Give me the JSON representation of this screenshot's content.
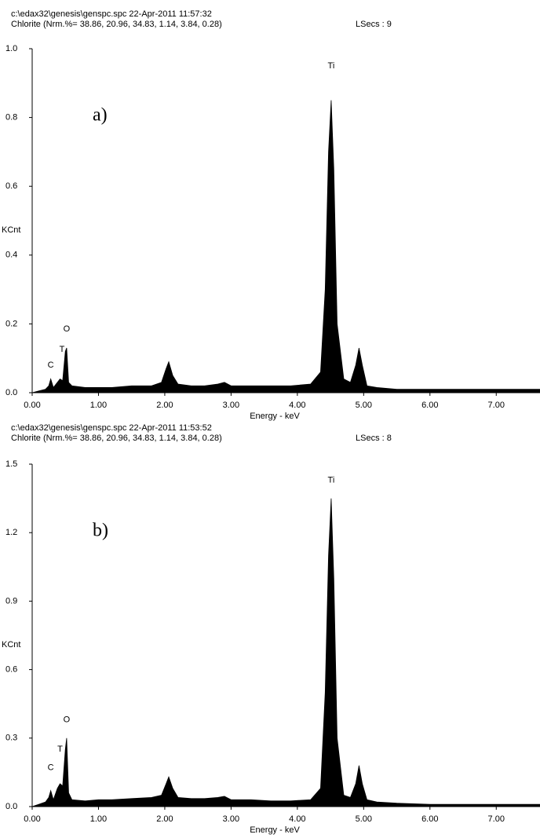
{
  "chart_data": [
    {
      "type": "area",
      "file": "c:\\edax32\\genesis\\genspc.spc  22-Apr-2011 11:57:32",
      "sample": "Chlorite (Nrm.%= 38.86, 20.96, 34.83, 1.14, 3.84, 0.28)",
      "lsecs": "LSecs : 9",
      "panel": "a)",
      "xlabel": "Energy - keV",
      "ylabel": "KCnt",
      "color": "#000000",
      "x": [
        0,
        0.1,
        0.2,
        0.25,
        0.28,
        0.32,
        0.38,
        0.42,
        0.46,
        0.5,
        0.52,
        0.55,
        0.6,
        0.8,
        1.0,
        1.2,
        1.5,
        1.8,
        1.95,
        2.02,
        2.06,
        2.12,
        2.2,
        2.4,
        2.6,
        2.8,
        2.9,
        3.0,
        3.3,
        3.6,
        3.9,
        4.2,
        4.35,
        4.42,
        4.47,
        4.51,
        4.55,
        4.6,
        4.7,
        4.8,
        4.88,
        4.93,
        4.98,
        5.05,
        5.2,
        5.5,
        6.0,
        6.5,
        7.0,
        7.5,
        7.66
      ],
      "values": [
        0,
        0.005,
        0.01,
        0.02,
        0.04,
        0.015,
        0.03,
        0.04,
        0.035,
        0.12,
        0.13,
        0.03,
        0.02,
        0.015,
        0.015,
        0.015,
        0.02,
        0.02,
        0.03,
        0.07,
        0.09,
        0.05,
        0.025,
        0.02,
        0.02,
        0.025,
        0.03,
        0.02,
        0.02,
        0.02,
        0.02,
        0.025,
        0.06,
        0.3,
        0.7,
        0.85,
        0.65,
        0.2,
        0.04,
        0.03,
        0.08,
        0.13,
        0.08,
        0.02,
        0.015,
        0.01,
        0.01,
        0.01,
        0.01,
        0.01,
        0.01
      ],
      "annotations": [
        {
          "text": "C",
          "x": 0.28,
          "y": 0.08
        },
        {
          "text": "T",
          "x": 0.45,
          "y": 0.125
        },
        {
          "text": "O",
          "x": 0.52,
          "y": 0.185
        },
        {
          "text": "Ti",
          "x": 4.51,
          "y": 0.95
        }
      ],
      "xlim": [
        0,
        7.66
      ],
      "ylim": [
        0,
        1
      ],
      "xticks": [
        {
          "value": 0,
          "label": "0.00"
        },
        {
          "value": 1,
          "label": "1.00"
        },
        {
          "value": 2,
          "label": "2.00"
        },
        {
          "value": 3,
          "label": "3.00"
        },
        {
          "value": 4,
          "label": "4.00"
        },
        {
          "value": 5,
          "label": "5.00"
        },
        {
          "value": 6,
          "label": "6.00"
        },
        {
          "value": 7,
          "label": "7.00"
        }
      ],
      "yticks": [
        {
          "value": 0,
          "label": "0.0"
        },
        0.2,
        0.4,
        0.6,
        0.8,
        {
          "value": 1,
          "label": "1.0"
        }
      ]
    },
    {
      "type": "area",
      "file": "c:\\edax32\\genesis\\genspc.spc  22-Apr-2011 11:53:52",
      "sample": "Chlorite (Nrm.%= 38.86, 20.96, 34.83, 1.14, 3.84, 0.28)",
      "lsecs": "LSecs : 8",
      "panel": "b)",
      "xlabel": "Energy - keV",
      "ylabel": "KCnt",
      "color": "#000000",
      "x": [
        0,
        0.1,
        0.2,
        0.25,
        0.28,
        0.32,
        0.38,
        0.42,
        0.46,
        0.5,
        0.52,
        0.55,
        0.6,
        0.8,
        1.0,
        1.2,
        1.5,
        1.8,
        1.95,
        2.02,
        2.06,
        2.12,
        2.2,
        2.4,
        2.6,
        2.8,
        2.9,
        3.0,
        3.3,
        3.6,
        3.9,
        4.2,
        4.35,
        4.42,
        4.47,
        4.51,
        4.55,
        4.6,
        4.7,
        4.8,
        4.88,
        4.93,
        4.98,
        5.05,
        5.2,
        5.5,
        6.0,
        6.5,
        7.0,
        7.5,
        7.66
      ],
      "values": [
        0,
        0.01,
        0.02,
        0.04,
        0.07,
        0.03,
        0.08,
        0.1,
        0.09,
        0.25,
        0.3,
        0.06,
        0.03,
        0.025,
        0.03,
        0.03,
        0.035,
        0.04,
        0.05,
        0.1,
        0.13,
        0.08,
        0.04,
        0.035,
        0.035,
        0.04,
        0.045,
        0.03,
        0.03,
        0.025,
        0.025,
        0.03,
        0.08,
        0.5,
        1.1,
        1.35,
        1.0,
        0.3,
        0.05,
        0.04,
        0.1,
        0.18,
        0.1,
        0.03,
        0.02,
        0.015,
        0.01,
        0.01,
        0.01,
        0.01,
        0.01
      ],
      "annotations": [
        {
          "text": "C",
          "x": 0.28,
          "y": 0.17
        },
        {
          "text": "T",
          "x": 0.42,
          "y": 0.25
        },
        {
          "text": "O",
          "x": 0.52,
          "y": 0.38
        },
        {
          "text": "Ti",
          "x": 4.51,
          "y": 1.43
        }
      ],
      "xlim": [
        0,
        7.66
      ],
      "ylim": [
        0,
        1.5
      ],
      "xticks": [
        {
          "value": 0,
          "label": "0.00"
        },
        {
          "value": 1,
          "label": "1.00"
        },
        {
          "value": 2,
          "label": "2.00"
        },
        {
          "value": 3,
          "label": "3.00"
        },
        {
          "value": 4,
          "label": "4.00"
        },
        {
          "value": 5,
          "label": "5.00"
        },
        {
          "value": 6,
          "label": "6.00"
        },
        {
          "value": 7,
          "label": "7.00"
        }
      ],
      "yticks": [
        {
          "value": 0,
          "label": "0.0"
        },
        0.3,
        0.6,
        0.9,
        1.2,
        1.5
      ]
    }
  ]
}
